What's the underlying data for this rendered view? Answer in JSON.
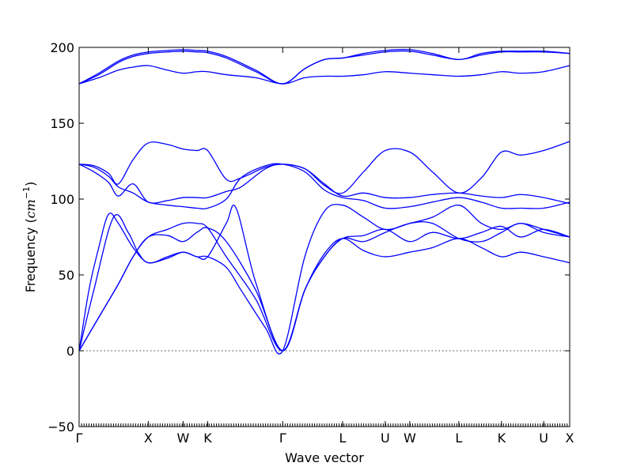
{
  "chart_data": {
    "type": "line",
    "title": "",
    "xlabel": "Wave vector",
    "ylabel": "Frequency (",
    "ylabel_math": "cm",
    "ylabel_exp": "−1",
    "ylabel_close": ")",
    "ylim": [
      -50,
      200
    ],
    "yticks": [
      -50,
      0,
      50,
      100,
      150,
      200
    ],
    "ytick_labels": [
      "−50",
      "0",
      "50",
      "100",
      "150",
      "200"
    ],
    "xlim": [
      0,
      1
    ],
    "xticks": [
      {
        "x": 0.0,
        "label": "Γ"
      },
      {
        "x": 0.141,
        "label": "X"
      },
      {
        "x": 0.212,
        "label": "W"
      },
      {
        "x": 0.262,
        "label": "K"
      },
      {
        "x": 0.415,
        "label": "Γ"
      },
      {
        "x": 0.537,
        "label": "L"
      },
      {
        "x": 0.624,
        "label": "U"
      },
      {
        "x": 0.674,
        "label": "W"
      },
      {
        "x": 0.774,
        "label": "L"
      },
      {
        "x": 0.861,
        "label": "K"
      },
      {
        "x": 0.947,
        "label": "U"
      },
      {
        "x": 1.0,
        "label": "X"
      }
    ],
    "zero_line": 0,
    "grid": false,
    "series_color": "#0000ff",
    "series": [
      {
        "x": [
          0,
          0.04,
          0.08,
          0.11,
          0.141,
          0.18,
          0.212,
          0.24,
          0.262,
          0.3,
          0.36,
          0.415,
          0.46,
          0.5,
          0.537,
          0.58,
          0.624,
          0.674,
          0.72,
          0.774,
          0.82,
          0.861,
          0.9,
          0.947,
          1.0
        ],
        "y": [
          0,
          22,
          44,
          62,
          75,
          76,
          72,
          78,
          81,
          72,
          40,
          0,
          40,
          62,
          74,
          76,
          80,
          72,
          78,
          74,
          78,
          82,
          75,
          80,
          75
        ]
      },
      {
        "x": [
          0,
          0.04,
          0.08,
          0.11,
          0.141,
          0.18,
          0.212,
          0.24,
          0.262,
          0.3,
          0.36,
          0.415,
          0.46,
          0.5,
          0.537,
          0.58,
          0.624,
          0.674,
          0.72,
          0.774,
          0.82,
          0.861,
          0.9,
          0.947,
          1.0
        ],
        "y": [
          0,
          22,
          44,
          62,
          75,
          80,
          84,
          84,
          81,
          62,
          34,
          0,
          40,
          62,
          74,
          72,
          78,
          84,
          84,
          74,
          72,
          78,
          84,
          78,
          75
        ]
      },
      {
        "x": [
          0,
          0.03,
          0.07,
          0.1,
          0.12,
          0.141,
          0.18,
          0.212,
          0.24,
          0.262,
          0.3,
          0.33,
          0.38,
          0.415,
          0.46,
          0.5,
          0.537,
          0.58,
          0.624,
          0.674,
          0.72,
          0.774,
          0.82,
          0.861,
          0.9,
          0.947,
          1.0
        ],
        "y": [
          0,
          40,
          88,
          78,
          65,
          58,
          61,
          65,
          62,
          62,
          55,
          40,
          15,
          0,
          62,
          92,
          96,
          88,
          80,
          84,
          88,
          96,
          84,
          80,
          84,
          80,
          75
        ]
      },
      {
        "x": [
          0,
          0.02,
          0.04,
          0.06,
          0.08,
          0.11,
          0.141,
          0.18,
          0.212,
          0.24,
          0.262,
          0.3,
          0.32,
          0.36,
          0.415,
          0.46,
          0.5,
          0.537,
          0.58,
          0.624,
          0.674,
          0.72,
          0.774,
          0.82,
          0.861,
          0.9,
          0.947,
          1.0
        ],
        "y": [
          0,
          40,
          68,
          90,
          84,
          68,
          58,
          62,
          65,
          62,
          62,
          84,
          94,
          45,
          0,
          40,
          64,
          74,
          66,
          62,
          65,
          68,
          74,
          68,
          62,
          65,
          62,
          58
        ]
      },
      {
        "x": [
          0,
          0.03,
          0.06,
          0.08,
          0.11,
          0.141,
          0.18,
          0.212,
          0.24,
          0.262,
          0.3,
          0.33,
          0.38,
          0.415,
          0.46,
          0.5,
          0.537,
          0.58,
          0.624,
          0.674,
          0.72,
          0.774,
          0.82,
          0.861,
          0.9,
          0.947,
          1.0
        ],
        "y": [
          123,
          121,
          115,
          108,
          104,
          98,
          96,
          95,
          94,
          94,
          100,
          114,
          122,
          123,
          118,
          106,
          101,
          99,
          94,
          95,
          98,
          101,
          98,
          94,
          94,
          94,
          98
        ]
      },
      {
        "x": [
          0,
          0.03,
          0.06,
          0.08,
          0.11,
          0.141,
          0.18,
          0.212,
          0.24,
          0.262,
          0.3,
          0.33,
          0.38,
          0.415,
          0.46,
          0.5,
          0.537,
          0.58,
          0.624,
          0.674,
          0.72,
          0.774,
          0.82,
          0.861,
          0.9,
          0.947,
          1.0
        ],
        "y": [
          123,
          118,
          111,
          102,
          110,
          98,
          99,
          101,
          101,
          101,
          105,
          108,
          120,
          123,
          120,
          110,
          102,
          104,
          101,
          101,
          103,
          104,
          102,
          101,
          103,
          101,
          97
        ]
      },
      {
        "x": [
          0,
          0.03,
          0.06,
          0.08,
          0.11,
          0.141,
          0.18,
          0.212,
          0.24,
          0.262,
          0.3,
          0.33,
          0.38,
          0.415,
          0.46,
          0.5,
          0.537,
          0.58,
          0.624,
          0.674,
          0.72,
          0.774,
          0.82,
          0.861,
          0.9,
          0.947,
          1.0
        ],
        "y": [
          123,
          122,
          117,
          110,
          126,
          137,
          136,
          133,
          132,
          132,
          113,
          114,
          121,
          123,
          120,
          109,
          104,
          118,
          132,
          131,
          118,
          104,
          114,
          131,
          129,
          132,
          138
        ]
      },
      {
        "x": [
          0,
          0.04,
          0.08,
          0.11,
          0.141,
          0.18,
          0.212,
          0.24,
          0.262,
          0.3,
          0.36,
          0.415,
          0.46,
          0.5,
          0.537,
          0.58,
          0.624,
          0.674,
          0.72,
          0.774,
          0.82,
          0.861,
          0.9,
          0.947,
          1.0
        ],
        "y": [
          176,
          180,
          185,
          187,
          188,
          185,
          183,
          184,
          184,
          182,
          180,
          176,
          180,
          181,
          181,
          182,
          184,
          183,
          182,
          181,
          182,
          184,
          183,
          184,
          188
        ]
      },
      {
        "x": [
          0,
          0.04,
          0.08,
          0.11,
          0.141,
          0.18,
          0.212,
          0.24,
          0.262,
          0.3,
          0.36,
          0.415,
          0.46,
          0.5,
          0.537,
          0.58,
          0.624,
          0.674,
          0.72,
          0.774,
          0.82,
          0.861,
          0.9,
          0.947,
          1.0
        ],
        "y": [
          176,
          182,
          190,
          194,
          196,
          197,
          197.5,
          197,
          196.5,
          193,
          184,
          176,
          186,
          192,
          193,
          195,
          197,
          197.5,
          195,
          192,
          195,
          197,
          197,
          197,
          196
        ]
      },
      {
        "x": [
          0,
          0.04,
          0.08,
          0.11,
          0.141,
          0.18,
          0.212,
          0.24,
          0.262,
          0.3,
          0.36,
          0.415,
          0.46,
          0.5,
          0.537,
          0.58,
          0.624,
          0.674,
          0.72,
          0.774,
          0.82,
          0.861,
          0.9,
          0.947,
          1.0
        ],
        "y": [
          176,
          183,
          191,
          195,
          197,
          198,
          198.5,
          198,
          197.5,
          194,
          185,
          176,
          186,
          192,
          193,
          196,
          198,
          198.5,
          196,
          192,
          196,
          197.5,
          197.5,
          197.5,
          196
        ]
      }
    ]
  }
}
